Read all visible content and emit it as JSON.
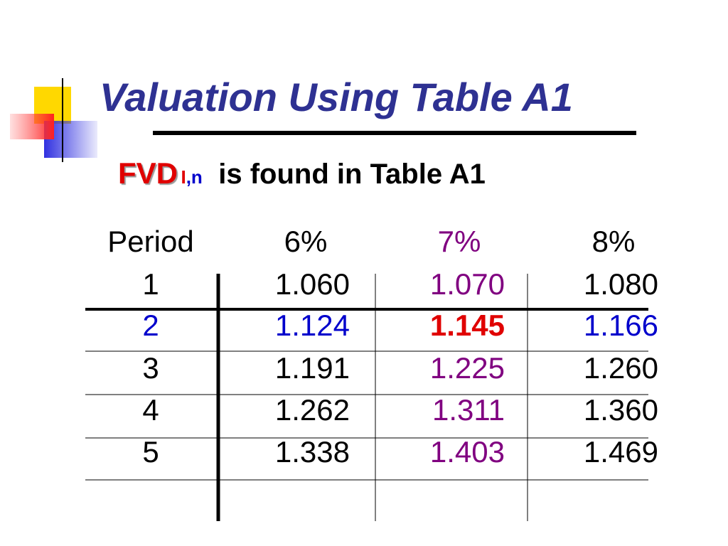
{
  "title": "Valuation Using Table A1",
  "subtitle": {
    "symbol": "FVD",
    "sub_i": "I",
    "sub_sep": ",",
    "sub_n": "n",
    "text": "is found in Table A1"
  },
  "table": {
    "header": [
      "Period",
      "6%",
      "7%",
      "8%"
    ],
    "rows": [
      [
        "1",
        "1.060",
        "1.070",
        "1.080"
      ],
      [
        "2",
        "1.124",
        "1.145",
        "1.166"
      ],
      [
        "3",
        "1.191",
        "1.225",
        "1.260"
      ],
      [
        "4",
        "1.262",
        "1.311",
        "1.360"
      ],
      [
        "5",
        "1.338",
        "1.403",
        "1.469"
      ]
    ]
  }
}
